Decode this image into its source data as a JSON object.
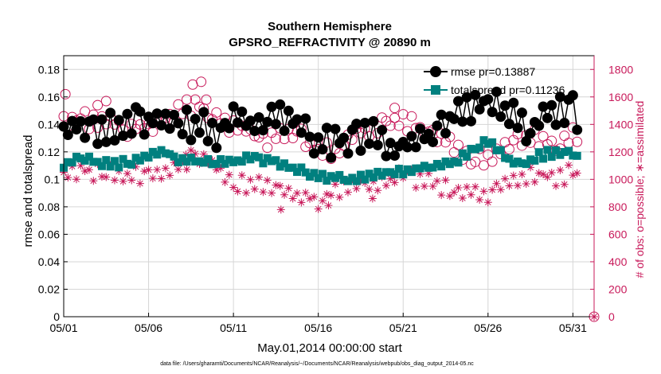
{
  "colors": {
    "rmse": "#000000",
    "spread": "#00807f",
    "obs": "#c8195a"
  },
  "chart_data": {
    "type": "line",
    "title": "Southern Hemisphere",
    "subtitle": "GPSRO_REFRACTIVITY @ 20890 m",
    "xlabel": "May.01,2014 00:00:00 start",
    "ylabel": "rmse and totalspread",
    "y2label": "# of obs: o=possible; ∗=assimilated",
    "footer": "data file: /Users/gharamti/Documents/NCAR/Reanalysis/~/Documents/NCAR/Reanalysis/webpub/obs_diag_output_2014-05.nc",
    "x_ticks": [
      "05/01",
      "05/06",
      "05/11",
      "05/16",
      "05/21",
      "05/26",
      "05/31"
    ],
    "x_tick_days": [
      1,
      6,
      11,
      16,
      21,
      26,
      31
    ],
    "xlim": [
      1,
      32.25
    ],
    "ylim": [
      0,
      0.19
    ],
    "y_ticks": [
      "0",
      "0.02",
      "0.04",
      "0.06",
      "0.08",
      "0.1",
      "0.12",
      "0.14",
      "0.16",
      "0.18"
    ],
    "y_tick_values": [
      0,
      0.02,
      0.04,
      0.06,
      0.08,
      0.1,
      0.12,
      0.14,
      0.16,
      0.18
    ],
    "y2lim": [
      0,
      1900
    ],
    "y2_ticks": [
      "0",
      "200",
      "400",
      "600",
      "800",
      "1000",
      "1200",
      "1400",
      "1600",
      "1800"
    ],
    "y2_tick_values": [
      0,
      200,
      400,
      600,
      800,
      1000,
      1200,
      1400,
      1600,
      1800
    ],
    "grid": true,
    "legend": "top-right",
    "legend_entries": [
      "rmse pr=0.13887",
      "totalspread pr=0.11236"
    ],
    "samples_per_day": 4,
    "series": [
      {
        "name": "rmse pr=0.13887",
        "axis": "left",
        "marker": "circle",
        "anchors": [
          [
            1,
            0.133
          ],
          [
            1.5,
            0.136
          ],
          [
            2,
            0.139
          ],
          [
            2.5,
            0.141
          ],
          [
            3,
            0.137
          ],
          [
            3.5,
            0.136
          ],
          [
            4,
            0.137
          ],
          [
            4.5,
            0.138
          ],
          [
            5,
            0.139
          ],
          [
            5.5,
            0.142
          ],
          [
            6,
            0.145
          ],
          [
            6.5,
            0.147
          ],
          [
            7,
            0.146
          ],
          [
            7.5,
            0.146
          ],
          [
            8,
            0.142
          ],
          [
            8.5,
            0.14
          ],
          [
            9,
            0.138
          ],
          [
            9.5,
            0.137
          ],
          [
            10,
            0.133
          ],
          [
            10.5,
            0.138
          ],
          [
            11,
            0.141
          ],
          [
            11.5,
            0.143
          ],
          [
            12,
            0.141
          ],
          [
            12.5,
            0.142
          ],
          [
            13,
            0.144
          ],
          [
            13.5,
            0.148
          ],
          [
            14,
            0.146
          ],
          [
            14.5,
            0.142
          ],
          [
            15,
            0.139
          ],
          [
            15.5,
            0.133
          ],
          [
            16,
            0.128
          ],
          [
            16.5,
            0.126
          ],
          [
            17,
            0.127
          ],
          [
            17.5,
            0.129
          ],
          [
            18,
            0.13
          ],
          [
            18.5,
            0.13
          ],
          [
            19,
            0.131
          ],
          [
            19.5,
            0.13
          ],
          [
            20,
            0.127
          ],
          [
            20.5,
            0.124
          ],
          [
            21,
            0.126
          ],
          [
            21.5,
            0.129
          ],
          [
            22,
            0.131
          ],
          [
            22.5,
            0.133
          ],
          [
            23,
            0.137
          ],
          [
            23.5,
            0.141
          ],
          [
            24,
            0.148
          ],
          [
            24.5,
            0.151
          ],
          [
            25,
            0.153
          ],
          [
            25.5,
            0.156
          ],
          [
            26,
            0.155
          ],
          [
            26.5,
            0.152
          ],
          [
            27,
            0.151
          ],
          [
            27.5,
            0.147
          ],
          [
            28,
            0.14
          ],
          [
            28.5,
            0.139
          ],
          [
            29,
            0.143
          ],
          [
            29.5,
            0.147
          ],
          [
            30,
            0.149
          ],
          [
            30.5,
            0.151
          ],
          [
            31,
            0.15
          ],
          [
            31.25,
            0.146
          ]
        ]
      },
      {
        "name": "totalspread pr=0.11236",
        "axis": "left",
        "marker": "square",
        "anchors": [
          [
            1,
            0.109
          ],
          [
            2,
            0.116
          ],
          [
            3,
            0.112
          ],
          [
            4,
            0.111
          ],
          [
            5,
            0.113
          ],
          [
            6,
            0.118
          ],
          [
            7,
            0.119
          ],
          [
            8,
            0.114
          ],
          [
            9,
            0.113
          ],
          [
            10,
            0.113
          ],
          [
            11,
            0.113
          ],
          [
            12,
            0.115
          ],
          [
            13,
            0.114
          ],
          [
            14,
            0.111
          ],
          [
            15,
            0.106
          ],
          [
            16,
            0.102
          ],
          [
            17,
            0.101
          ],
          [
            18,
            0.1
          ],
          [
            19,
            0.102
          ],
          [
            20,
            0.104
          ],
          [
            21,
            0.106
          ],
          [
            22,
            0.108
          ],
          [
            23,
            0.11
          ],
          [
            24,
            0.112
          ],
          [
            25,
            0.12
          ],
          [
            26,
            0.128
          ],
          [
            27,
            0.116
          ],
          [
            28,
            0.11
          ],
          [
            29,
            0.117
          ],
          [
            30,
            0.12
          ],
          [
            31,
            0.12
          ],
          [
            31.25,
            0.115
          ]
        ]
      },
      {
        "name": "possible",
        "axis": "right",
        "marker": "open-circle",
        "anchors": [
          [
            1,
            1420
          ],
          [
            2,
            1440
          ],
          [
            3,
            1430
          ],
          [
            4,
            1400
          ],
          [
            5,
            1360
          ],
          [
            6,
            1400
          ],
          [
            7,
            1440
          ],
          [
            8,
            1510
          ],
          [
            9,
            1530
          ],
          [
            10,
            1420
          ],
          [
            11,
            1390
          ],
          [
            12,
            1340
          ],
          [
            13,
            1300
          ],
          [
            14,
            1350
          ],
          [
            15,
            1300
          ],
          [
            16,
            1220
          ],
          [
            17,
            1200
          ],
          [
            18,
            1300
          ],
          [
            19,
            1380
          ],
          [
            20,
            1380
          ],
          [
            21,
            1430
          ],
          [
            22,
            1360
          ],
          [
            23,
            1310
          ],
          [
            24,
            1230
          ],
          [
            25,
            1180
          ],
          [
            26,
            1130
          ],
          [
            27,
            1210
          ],
          [
            28,
            1280
          ],
          [
            29,
            1310
          ],
          [
            30,
            1260
          ],
          [
            31,
            1310
          ],
          [
            31.25,
            1290
          ]
        ],
        "outliers": [
          [
            1.1,
            1620
          ],
          [
            3.0,
            1540
          ],
          [
            3.5,
            1570
          ],
          [
            8.6,
            1690
          ],
          [
            9.1,
            1710
          ],
          [
            9.4,
            1580
          ],
          [
            20.5,
            1520
          ]
        ]
      },
      {
        "name": "assimilated",
        "axis": "right",
        "marker": "asterisk",
        "anchors": [
          [
            1,
            1040
          ],
          [
            2,
            1070
          ],
          [
            3,
            1050
          ],
          [
            4,
            1060
          ],
          [
            5,
            1030
          ],
          [
            6,
            1040
          ],
          [
            7,
            1070
          ],
          [
            8,
            1120
          ],
          [
            9,
            1170
          ],
          [
            10,
            1070
          ],
          [
            11,
            960
          ],
          [
            12,
            960
          ],
          [
            13,
            950
          ],
          [
            14,
            930
          ],
          [
            15,
            880
          ],
          [
            16,
            840
          ],
          [
            17,
            920
          ],
          [
            18,
            990
          ],
          [
            19,
            980
          ],
          [
            20,
            980
          ],
          [
            21,
            1040
          ],
          [
            22,
            990
          ],
          [
            23,
            960
          ],
          [
            24,
            910
          ],
          [
            25,
            890
          ],
          [
            26,
            880
          ],
          [
            27,
            960
          ],
          [
            28,
            1010
          ],
          [
            29,
            1040
          ],
          [
            30,
            1020
          ],
          [
            31,
            1040
          ],
          [
            31.25,
            1030
          ]
        ],
        "outliers": [
          [
            8.2,
            1180
          ],
          [
            13.8,
            780
          ],
          [
            16.6,
            810
          ],
          [
            19.2,
            860
          ]
        ]
      }
    ]
  }
}
